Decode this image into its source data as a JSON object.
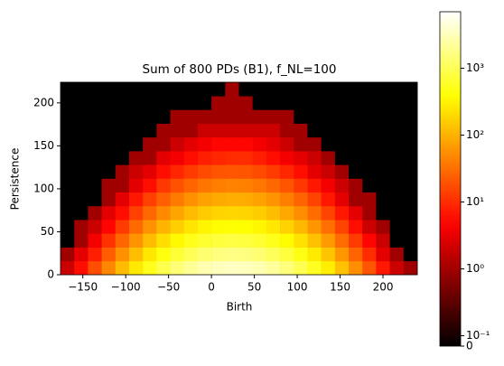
{
  "chart_data": {
    "type": "heatmap",
    "title": "Sum of 800 PDs (B1), f_NL=100",
    "x_label": "Birth",
    "y_label": "Persistence",
    "x_bins": [
      -176,
      -160,
      -144,
      -128,
      -112,
      -96,
      -80,
      -64,
      -48,
      -32,
      -16,
      0,
      16,
      32,
      48,
      64,
      80,
      96,
      112,
      128,
      144,
      160,
      176,
      192,
      208,
      224,
      240
    ],
    "y_bins": [
      0,
      16,
      32,
      48,
      64,
      80,
      96,
      112,
      128,
      144,
      160,
      176,
      192,
      208,
      224
    ],
    "values": [
      [
        2,
        6,
        18,
        48,
        116,
        256,
        511,
        910,
        1466,
        2130,
        2783,
        3277,
        3475,
        3319,
        2856,
        2214,
        1546,
        973,
        553,
        282,
        129,
        54,
        20,
        7,
        2,
        1
      ],
      [
        1,
        3,
        8,
        23,
        56,
        124,
        247,
        440,
        709,
        1030,
        1346,
        1584,
        1680,
        1604,
        1381,
        1070,
        748,
        470,
        267,
        136,
        62,
        26,
        10,
        3,
        1,
        0
      ],
      [
        0,
        1,
        4,
        11,
        27,
        60,
        119,
        213,
        343,
        498,
        650,
        766,
        812,
        775,
        667,
        517,
        361,
        227,
        129,
        66,
        30,
        13,
        5,
        2,
        0,
        0
      ],
      [
        0,
        1,
        2,
        5,
        13,
        29,
        58,
        103,
        165,
        240,
        314,
        370,
        392,
        374,
        322,
        250,
        174,
        110,
        62,
        32,
        15,
        6,
        2,
        1,
        0,
        0
      ],
      [
        0,
        0,
        1,
        3,
        6,
        14,
        28,
        50,
        80,
        116,
        152,
        179,
        190,
        181,
        156,
        121,
        85,
        53,
        30,
        15,
        7,
        3,
        1,
        0,
        0,
        0
      ],
      [
        0,
        0,
        0,
        1,
        3,
        7,
        14,
        24,
        39,
        56,
        74,
        87,
        92,
        88,
        76,
        59,
        41,
        26,
        15,
        7,
        3,
        1,
        1,
        0,
        0,
        0
      ],
      [
        0,
        0,
        0,
        1,
        1,
        3,
        6,
        12,
        19,
        27,
        35,
        41,
        44,
        42,
        36,
        28,
        20,
        12,
        7,
        4,
        2,
        1,
        0,
        0,
        0,
        0
      ],
      [
        0,
        0,
        0,
        0,
        1,
        2,
        3,
        6,
        9,
        13,
        17,
        20,
        21,
        20,
        17,
        13,
        9,
        6,
        3,
        2,
        1,
        0,
        0,
        0,
        0,
        0
      ],
      [
        0,
        0,
        0,
        0,
        0,
        1,
        1,
        3,
        4,
        6,
        8,
        9,
        10,
        10,
        8,
        6,
        4,
        3,
        2,
        1,
        0,
        0,
        0,
        0,
        0,
        0
      ],
      [
        0,
        0,
        0,
        0,
        0,
        0,
        1,
        1,
        2,
        3,
        4,
        5,
        5,
        5,
        4,
        3,
        2,
        1,
        1,
        0,
        0,
        0,
        0,
        0,
        0,
        0
      ],
      [
        0,
        0,
        0,
        0,
        0,
        0,
        0,
        1,
        1,
        1,
        2,
        2,
        2,
        2,
        2,
        2,
        1,
        1,
        0,
        0,
        0,
        0,
        0,
        0,
        0,
        0
      ],
      [
        0,
        0,
        0,
        0,
        0,
        0,
        0,
        0,
        1,
        1,
        1,
        1,
        1,
        1,
        1,
        1,
        1,
        0,
        0,
        0,
        0,
        0,
        0,
        0,
        0,
        0
      ],
      [
        0,
        0,
        0,
        0,
        0,
        0,
        0,
        0,
        0,
        0,
        0,
        1,
        1,
        1,
        0,
        0,
        0,
        0,
        0,
        0,
        0,
        0,
        0,
        0,
        0,
        0
      ],
      [
        0,
        0,
        0,
        0,
        0,
        0,
        0,
        0,
        0,
        0,
        0,
        0,
        1,
        0,
        0,
        0,
        0,
        0,
        0,
        0,
        0,
        0,
        0,
        0,
        0,
        0
      ]
    ],
    "colormap": "hot",
    "color_scale": "log",
    "xlim": [
      -176,
      240
    ],
    "ylim": [
      0,
      224
    ],
    "xticks": [
      {
        "value": -150,
        "label": "−150"
      },
      {
        "value": -100,
        "label": "−100"
      },
      {
        "value": -50,
        "label": "−50"
      },
      0,
      50,
      100,
      150,
      200
    ],
    "yticks": [
      0,
      50,
      100,
      150,
      200
    ],
    "clim": [
      0.07,
      7000
    ],
    "cticks": [
      0,
      {
        "value": 0.1,
        "label": "10⁻¹"
      },
      {
        "value": 1,
        "label": "10⁰"
      },
      {
        "value": 10,
        "label": "10¹"
      },
      {
        "value": 100,
        "label": "10²"
      },
      {
        "value": 1000,
        "label": "10³"
      }
    ]
  }
}
